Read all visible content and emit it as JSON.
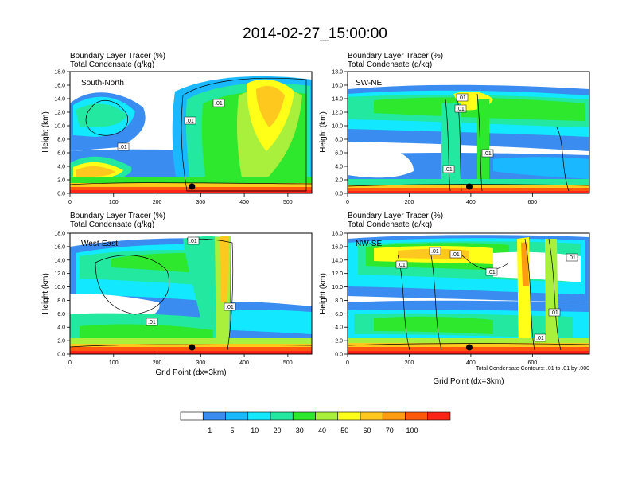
{
  "page_title": "2014-02-27_15:00:00",
  "footnote": "Total Condensate Contours: .01 to .01 by .000",
  "colorbar": {
    "labels": [
      "1",
      "5",
      "10",
      "20",
      "30",
      "40",
      "50",
      "60",
      "70",
      "100"
    ],
    "colors": [
      "#ffffff",
      "#3a8cf0",
      "#1ab8ff",
      "#12e8ff",
      "#22e8a0",
      "#2ee82e",
      "#a8f03c",
      "#ffff18",
      "#ffc81e",
      "#ff9c12",
      "#ff5a0c",
      "#ff2418"
    ]
  },
  "chart_data": [
    {
      "type": "heatmap",
      "title_line1": "Boundary Layer Tracer   (%)",
      "title_line2": "Total Condensate   (g/kg)",
      "annotation": "South-North",
      "ylabel": "Height (km)",
      "xlabel": "",
      "xlim": [
        0,
        555
      ],
      "ylim": [
        0,
        18
      ],
      "xticks": [
        "0",
        "100",
        "200",
        "300",
        "400",
        "500"
      ],
      "yticks": [
        "0.0",
        "2.0",
        "4.0",
        "6.0",
        "8.0",
        "10.0",
        "12.0",
        "14.0",
        "16.0",
        "18.0"
      ],
      "contour_labels": [
        ".01",
        ".01",
        ".01"
      ],
      "marker": {
        "x": 280,
        "y": 1.0
      }
    },
    {
      "type": "heatmap",
      "title_line1": "Boundary Layer Tracer   (%)",
      "title_line2": "Total Condensate   (g/kg)",
      "annotation": "SW-NE",
      "ylabel": "Height (km)",
      "xlabel": "",
      "xlim": [
        0,
        785
      ],
      "ylim": [
        0,
        18
      ],
      "xticks": [
        "0",
        "200",
        "400",
        "600"
      ],
      "yticks": [
        "0.0",
        "2.0",
        "4.0",
        "6.0",
        "8.0",
        "10.0",
        "12.0",
        "14.0",
        "16.0",
        "18.0"
      ],
      "contour_labels": [
        ".01",
        ".01",
        ".01",
        ".01"
      ],
      "marker": {
        "x": 395,
        "y": 1.0
      }
    },
    {
      "type": "heatmap",
      "title_line1": "Boundary Layer Tracer   (%)",
      "title_line2": "Total Condensate   (g/kg)",
      "annotation": "West-East",
      "ylabel": "Height (km)",
      "xlabel": "Grid Point (dx=3km)",
      "xlim": [
        0,
        555
      ],
      "ylim": [
        0,
        18
      ],
      "xticks": [
        "0",
        "100",
        "200",
        "300",
        "400",
        "500"
      ],
      "yticks": [
        "0.0",
        "2.0",
        "4.0",
        "6.0",
        "8.0",
        "10.0",
        "12.0",
        "14.0",
        "16.0",
        "18.0"
      ],
      "contour_labels": [
        ".01",
        ".01",
        ".01"
      ],
      "marker": {
        "x": 280,
        "y": 1.0
      }
    },
    {
      "type": "heatmap",
      "title_line1": "Boundary Layer Tracer   (%)",
      "title_line2": "Total Condensate   (g/kg)",
      "annotation": "NW-SE",
      "ylabel": "Height (km)",
      "xlabel": "Grid Point (dx=3km)",
      "xlim": [
        0,
        785
      ],
      "ylim": [
        0,
        18
      ],
      "xticks": [
        "0",
        "200",
        "400",
        "600"
      ],
      "yticks": [
        "0.0",
        "2.0",
        "4.0",
        "6.0",
        "8.0",
        "10.0",
        "12.0",
        "14.0",
        "16.0",
        "18.0"
      ],
      "contour_labels": [
        ".01",
        ".01",
        ".01",
        ".01",
        ".01",
        ".01",
        ".01"
      ],
      "marker": {
        "x": 395,
        "y": 1.0
      }
    }
  ]
}
